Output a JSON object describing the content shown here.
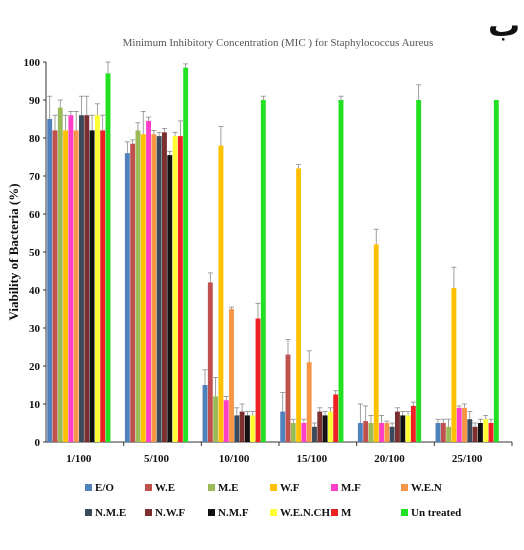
{
  "corner_label": "ب",
  "chart_data": {
    "type": "bar",
    "title": "Minimum Inhibitory Concentration (MIC ) for Staphylococcus Aureus",
    "xlabel": "",
    "ylabel": "Viability of Bacteria (%)",
    "ylim": [
      0,
      100
    ],
    "yticks": [
      0,
      10,
      20,
      30,
      40,
      50,
      60,
      70,
      80,
      90,
      100
    ],
    "grid": false,
    "legend_position": "bottom",
    "categories": [
      "1/100",
      "5/100",
      "10/100",
      "15/100",
      "20/100",
      "25/100"
    ],
    "series": [
      {
        "name": "E/O",
        "color": "#4f81bd",
        "values": [
          85,
          76,
          15,
          8,
          5,
          5
        ],
        "errors": [
          6,
          3,
          4,
          5,
          5,
          1
        ]
      },
      {
        "name": "W.E",
        "color": "#c0504d",
        "values": [
          82,
          78.5,
          42,
          23,
          5.5,
          5
        ],
        "errors": [
          4,
          1,
          2.5,
          4,
          4,
          1
        ]
      },
      {
        "name": "M.E",
        "color": "#9bbb59",
        "values": [
          88,
          82,
          12,
          5,
          5,
          4
        ],
        "errors": [
          2,
          2,
          5,
          1,
          2,
          2
        ]
      },
      {
        "name": "W.F",
        "color": "#ffc000",
        "values": [
          82,
          81,
          78,
          72,
          52,
          40.5
        ],
        "errors": [
          4,
          6,
          5,
          1,
          4,
          5.5
        ]
      },
      {
        "name": "M.F",
        "color": "#ff3fc8",
        "values": [
          86,
          84.5,
          11,
          5,
          5,
          9
        ],
        "errors": [
          1,
          1,
          1,
          1,
          2,
          0.5
        ]
      },
      {
        "name": "W.E.N",
        "color": "#f79646",
        "values": [
          82,
          81,
          35,
          21,
          5,
          9
        ],
        "errors": [
          5,
          1,
          0.5,
          3,
          0.5,
          1
        ]
      },
      {
        "name": "N.M.E",
        "color": "#3b4a5a",
        "values": [
          86,
          80.5,
          7,
          4,
          4,
          6
        ],
        "errors": [
          5,
          1,
          2,
          1,
          1,
          2
        ]
      },
      {
        "name": "N.W.F",
        "color": "#7b2f2f",
        "values": [
          86,
          81.5,
          8,
          8,
          8,
          4
        ],
        "errors": [
          5,
          1,
          2,
          1,
          1,
          1
        ]
      },
      {
        "name": "N.M.F",
        "color": "#111111",
        "values": [
          82,
          75.5,
          7,
          7,
          7,
          5
        ],
        "errors": [
          4,
          1,
          1,
          1,
          1,
          1
        ]
      },
      {
        "name": "W.E.N.CH",
        "color": "#ffff33",
        "values": [
          86,
          80.5,
          7,
          8,
          7,
          6
        ],
        "errors": [
          3,
          1,
          1,
          1,
          1,
          1
        ]
      },
      {
        "name": "M",
        "color": "#ee2222",
        "values": [
          82,
          80.5,
          32.5,
          12.5,
          9.5,
          5
        ],
        "errors": [
          4,
          4,
          4,
          1,
          1,
          1
        ]
      },
      {
        "name": "Un treated",
        "color": "#22e022",
        "values": [
          97,
          98.5,
          90,
          90,
          90,
          90
        ],
        "errors": [
          3,
          1,
          1,
          1,
          4,
          0
        ]
      }
    ]
  }
}
